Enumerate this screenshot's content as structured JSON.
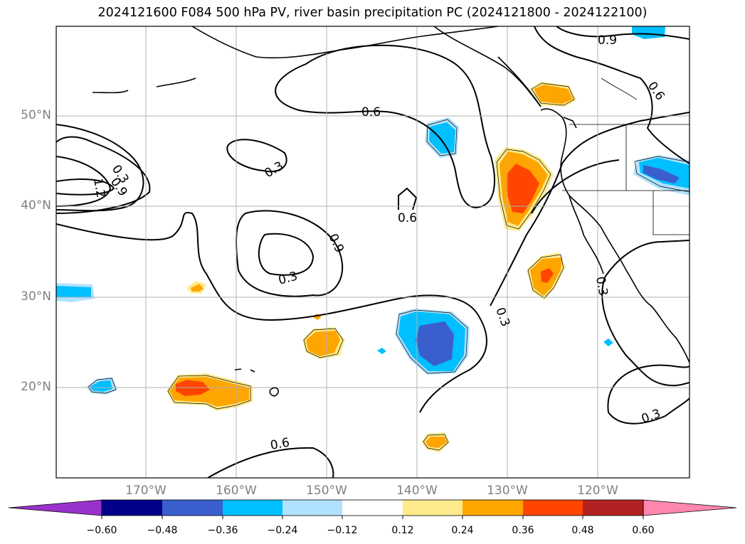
{
  "title": "2024121600 F084 500 hPa PV, river basin precipitation PC (2024121800 - 2024122100)",
  "map": {
    "lat_labels": [
      "50°N",
      "40°N",
      "30°N",
      "20°N"
    ],
    "lon_labels": [
      "170°W",
      "160°W",
      "150°W",
      "140°W",
      "130°W",
      "120°W"
    ],
    "contour_labels": [
      "0.9",
      "0.6",
      "0.6",
      "0.9",
      "1.2",
      "0.3",
      "0.3",
      "0.6",
      "0.9",
      "0.3",
      "0.3",
      "0.3",
      "0.3",
      "0.6"
    ]
  },
  "colorbar": {
    "colors": [
      "#9932cc",
      "#00008b",
      "#3a5fcd",
      "#00bfff",
      "#b0e2ff",
      "#ffffff",
      "#ffeb8b",
      "#ffa500",
      "#ff4500",
      "#b22222",
      "#ff86ad"
    ],
    "tick_labels": [
      "−0.60",
      "−0.48",
      "−0.36",
      "−0.24",
      "−0.12",
      "0.12",
      "0.24",
      "0.36",
      "0.48",
      "0.60"
    ]
  }
}
